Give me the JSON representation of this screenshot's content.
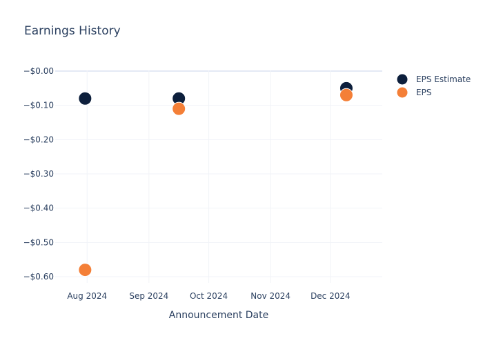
{
  "chart_data": {
    "type": "scatter",
    "title": "Earnings History",
    "xlabel": "Announcement Date",
    "ylabel": "",
    "x_ticks": [
      "Aug 2024",
      "Sep 2024",
      "Oct 2024",
      "Nov 2024",
      "Dec 2024"
    ],
    "y_ticks": [
      "−$0.00",
      "−$0.10",
      "−$0.20",
      "−$0.30",
      "−$0.40",
      "−$0.50",
      "−$0.60"
    ],
    "xlim": [
      "2024-07-16",
      "2024-12-27"
    ],
    "ylim": [
      -0.64,
      0.0
    ],
    "grid": true,
    "legend_position": "right",
    "series": [
      {
        "name": "EPS Estimate",
        "color": "#0d1f3c",
        "points": [
          {
            "x": "2024-07-31",
            "y": -0.08
          },
          {
            "x": "2024-09-16",
            "y": -0.08
          },
          {
            "x": "2024-12-09",
            "y": -0.05
          }
        ]
      },
      {
        "name": "EPS",
        "color": "#f47f37",
        "points": [
          {
            "x": "2024-07-31",
            "y": -0.58
          },
          {
            "x": "2024-09-16",
            "y": -0.11
          },
          {
            "x": "2024-12-09",
            "y": -0.07
          }
        ]
      }
    ]
  }
}
